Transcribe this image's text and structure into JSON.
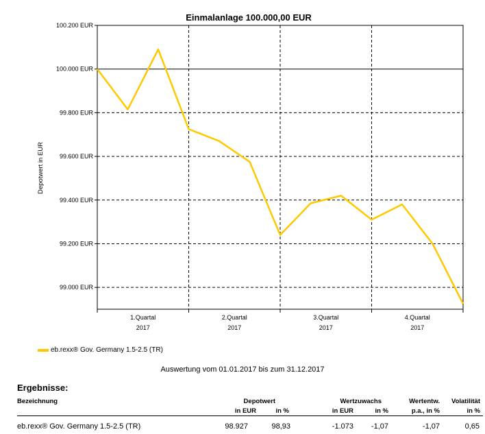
{
  "chart_data": {
    "type": "line",
    "title": "Einmalanlage 100.000,00 EUR",
    "ylabel": "Depotwert in EUR",
    "ylim": [
      98900,
      100200
    ],
    "yticks": [
      {
        "value": 100200,
        "label": "100.200 EUR"
      },
      {
        "value": 100000,
        "label": "100.000 EUR"
      },
      {
        "value": 99800,
        "label": "99.800 EUR"
      },
      {
        "value": 99600,
        "label": "99.600 EUR"
      },
      {
        "value": 99400,
        "label": "99.400 EUR"
      },
      {
        "value": 99200,
        "label": "99.200 EUR"
      },
      {
        "value": 99000,
        "label": "99.000 EUR"
      }
    ],
    "quarters": [
      {
        "label": "1.Quartal",
        "year": "2017"
      },
      {
        "label": "2.Quartal",
        "year": "2017"
      },
      {
        "label": "3.Quartal",
        "year": "2017"
      },
      {
        "label": "4.Quartal",
        "year": "2017"
      }
    ],
    "series": [
      {
        "name": "eb.rexx® Gov. Germany 1.5-2.5 (TR)",
        "color": "#FFC800",
        "x": [
          0,
          1,
          2,
          3,
          4,
          5,
          6,
          7,
          8,
          9,
          10,
          11,
          12
        ],
        "values": [
          100000,
          99815,
          100090,
          99725,
          99670,
          99575,
          99240,
          99385,
          99420,
          99310,
          99380,
          99200,
          98925
        ]
      }
    ],
    "grid": true
  },
  "period_text": "Auswertung vom 01.01.2017 bis zum 31.12.2017",
  "results": {
    "title": "Ergebnisse:",
    "headers": {
      "bezeichnung": "Bezeichnung",
      "depotwert": "Depotwert",
      "depotwert_eur": "in EUR",
      "depotwert_pct": "in %",
      "wertzuwachs": "Wertzuwachs",
      "wertzuwachs_eur": "in EUR",
      "wertzuwachs_pct": "in %",
      "wertentw": "Wertentw.",
      "wertentw_sub": "p.a., in %",
      "volatilitaet": "Volatilität",
      "volatilitaet_sub": "in %"
    },
    "row": {
      "name": "eb.rexx® Gov. Germany 1.5-2.5 (TR)",
      "depotwert_eur": "98.927",
      "depotwert_pct": "98,93",
      "wertzuwachs_eur": "-1.073",
      "wertzuwachs_pct": "-1,07",
      "wertentw": "-1,07",
      "volatilitaet": "0,65"
    }
  }
}
